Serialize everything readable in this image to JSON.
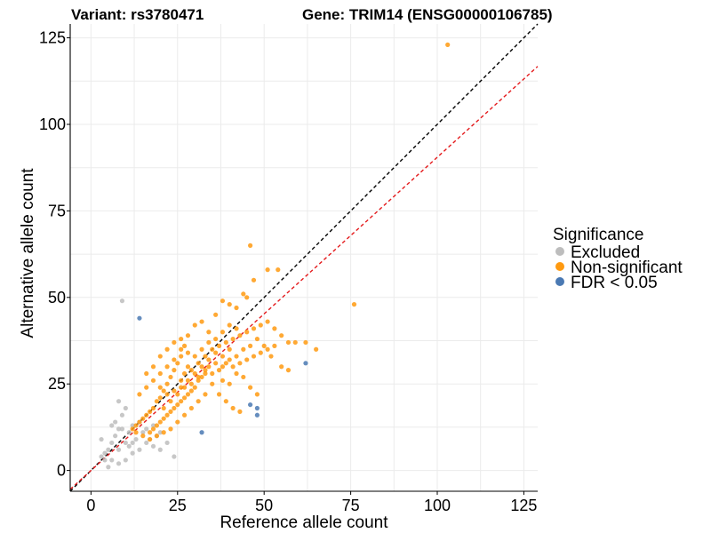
{
  "header": {
    "variant": "Variant: rs3780471",
    "gene": "Gene: TRIM14 (ENSG00000106785)"
  },
  "legend": {
    "title": "Significance",
    "items": [
      {
        "label": "Excluded",
        "color": "#bdbdbd"
      },
      {
        "label": "Non-significant",
        "color": "#ff9a10"
      },
      {
        "label": "FDR < 0.05",
        "color": "#4a79b3"
      }
    ]
  },
  "chart_data": {
    "type": "scatter",
    "title": "Variant: rs3780471    Gene: TRIM14 (ENSG00000106785)",
    "xlabel": "Reference allele count",
    "ylabel": "Alternative allele count",
    "xlim": [
      -6,
      129
    ],
    "ylim": [
      -6,
      129
    ],
    "xticks": [
      0,
      25,
      50,
      75,
      100,
      125
    ],
    "yticks": [
      0,
      25,
      50,
      75,
      100,
      125
    ],
    "tick_labels": [
      "0",
      "25",
      "50",
      "75",
      "100",
      "125"
    ],
    "grid": true,
    "legend_position": "right",
    "reference_lines": [
      {
        "name": "identity (y = x)",
        "slope": 1.0,
        "intercept": 0,
        "color": "#000000",
        "style": "dashed"
      },
      {
        "name": "fitted ratio",
        "slope": 0.905,
        "intercept": 0,
        "color": "#e41a1c",
        "style": "dashed"
      }
    ],
    "series": [
      {
        "name": "Excluded",
        "color": "#bdbdbd",
        "points": [
          [
            9,
            49
          ],
          [
            9,
            16
          ],
          [
            8,
            12
          ],
          [
            7,
            10
          ],
          [
            6,
            8
          ],
          [
            5,
            6
          ],
          [
            4,
            5
          ],
          [
            3,
            4
          ],
          [
            6,
            3
          ],
          [
            5,
            1
          ],
          [
            8,
            2
          ],
          [
            10,
            3
          ],
          [
            12,
            5
          ],
          [
            14,
            6
          ],
          [
            16,
            8
          ],
          [
            18,
            7
          ],
          [
            20,
            6
          ],
          [
            11,
            7
          ],
          [
            13,
            9
          ],
          [
            15,
            11
          ],
          [
            17,
            9
          ],
          [
            19,
            10
          ],
          [
            7,
            14
          ],
          [
            9,
            12
          ],
          [
            11,
            11
          ],
          [
            10,
            8
          ],
          [
            12,
            13
          ],
          [
            14,
            14
          ],
          [
            16,
            12
          ],
          [
            18,
            13
          ],
          [
            4,
            3
          ],
          [
            8,
            6
          ],
          [
            12,
            8
          ],
          [
            24,
            4
          ],
          [
            22,
            8
          ],
          [
            20,
            11
          ],
          [
            10,
            18
          ],
          [
            8,
            20
          ],
          [
            6,
            13
          ],
          [
            3,
            9
          ]
        ]
      },
      {
        "name": "Non-significant",
        "color": "#ff9a10",
        "points": [
          [
            103,
            123
          ],
          [
            76,
            48
          ],
          [
            65,
            35
          ],
          [
            62,
            37
          ],
          [
            59,
            37
          ],
          [
            46,
            65
          ],
          [
            47,
            55
          ],
          [
            51,
            58
          ],
          [
            54,
            58
          ],
          [
            44,
            51
          ],
          [
            45,
            50
          ],
          [
            42,
            47
          ],
          [
            40,
            48
          ],
          [
            38,
            49
          ],
          [
            36,
            45
          ],
          [
            34,
            40
          ],
          [
            32,
            43
          ],
          [
            30,
            42
          ],
          [
            28,
            39
          ],
          [
            27,
            36
          ],
          [
            26,
            33
          ],
          [
            25,
            31
          ],
          [
            24,
            29
          ],
          [
            23,
            27
          ],
          [
            22,
            25
          ],
          [
            21,
            23
          ],
          [
            20,
            21
          ],
          [
            19,
            20
          ],
          [
            18,
            18
          ],
          [
            17,
            17
          ],
          [
            16,
            16
          ],
          [
            15,
            15
          ],
          [
            14,
            14
          ],
          [
            13,
            13
          ],
          [
            12,
            12
          ],
          [
            36,
            34
          ],
          [
            34,
            30
          ],
          [
            33,
            28
          ],
          [
            32,
            27
          ],
          [
            31,
            26
          ],
          [
            30,
            24
          ],
          [
            29,
            23
          ],
          [
            28,
            22
          ],
          [
            27,
            21
          ],
          [
            26,
            20
          ],
          [
            25,
            19
          ],
          [
            24,
            18
          ],
          [
            23,
            17
          ],
          [
            22,
            16
          ],
          [
            21,
            15
          ],
          [
            20,
            14
          ],
          [
            19,
            13
          ],
          [
            18,
            12
          ],
          [
            17,
            11
          ],
          [
            38,
            30
          ],
          [
            40,
            32
          ],
          [
            42,
            33
          ],
          [
            44,
            35
          ],
          [
            46,
            36
          ],
          [
            48,
            38
          ],
          [
            50,
            36
          ],
          [
            52,
            33
          ],
          [
            55,
            30
          ],
          [
            57,
            29
          ],
          [
            38,
            26
          ],
          [
            40,
            25
          ],
          [
            42,
            28
          ],
          [
            44,
            27
          ],
          [
            46,
            24
          ],
          [
            48,
            22
          ],
          [
            20,
            28
          ],
          [
            22,
            30
          ],
          [
            24,
            32
          ],
          [
            26,
            35
          ],
          [
            28,
            34
          ],
          [
            18,
            26
          ],
          [
            16,
            24
          ],
          [
            14,
            22
          ],
          [
            16,
            28
          ],
          [
            18,
            30
          ],
          [
            20,
            33
          ],
          [
            22,
            35
          ],
          [
            24,
            37
          ],
          [
            26,
            38
          ],
          [
            28,
            30
          ],
          [
            30,
            33
          ],
          [
            32,
            35
          ],
          [
            34,
            37
          ],
          [
            36,
            38
          ],
          [
            38,
            40
          ],
          [
            40,
            42
          ],
          [
            42,
            41
          ],
          [
            35,
            25
          ],
          [
            37,
            22
          ],
          [
            39,
            20
          ],
          [
            41,
            18
          ],
          [
            43,
            17
          ],
          [
            33,
            22
          ],
          [
            31,
            20
          ],
          [
            29,
            18
          ],
          [
            27,
            16
          ],
          [
            25,
            14
          ],
          [
            23,
            12
          ],
          [
            21,
            11
          ],
          [
            19,
            10
          ],
          [
            17,
            9
          ],
          [
            15,
            10
          ],
          [
            13,
            11
          ],
          [
            26,
            26
          ],
          [
            27,
            28
          ],
          [
            29,
            29
          ],
          [
            31,
            31
          ],
          [
            33,
            33
          ],
          [
            35,
            35
          ],
          [
            37,
            36
          ],
          [
            39,
            37
          ],
          [
            41,
            38
          ],
          [
            43,
            39
          ],
          [
            45,
            40
          ],
          [
            47,
            41
          ],
          [
            49,
            42
          ],
          [
            51,
            43
          ],
          [
            53,
            41
          ],
          [
            55,
            39
          ],
          [
            57,
            37
          ],
          [
            20,
            24
          ],
          [
            22,
            22
          ],
          [
            24,
            23
          ],
          [
            26,
            24
          ],
          [
            28,
            26
          ],
          [
            30,
            28
          ],
          [
            32,
            30
          ],
          [
            34,
            32
          ],
          [
            36,
            31
          ],
          [
            38,
            33
          ],
          [
            40,
            35
          ],
          [
            21,
            18
          ],
          [
            23,
            20
          ],
          [
            25,
            22
          ],
          [
            27,
            24
          ],
          [
            29,
            25
          ],
          [
            31,
            27
          ],
          [
            33,
            29
          ],
          [
            35,
            28
          ],
          [
            37,
            29
          ],
          [
            39,
            31
          ],
          [
            41,
            30
          ],
          [
            43,
            31
          ],
          [
            45,
            32
          ],
          [
            47,
            33
          ],
          [
            49,
            34
          ],
          [
            51,
            35
          ],
          [
            53,
            36
          ]
        ]
      },
      {
        "name": "FDR < 0.05",
        "color": "#4a79b3",
        "points": [
          [
            14,
            44
          ],
          [
            62,
            31
          ],
          [
            46,
            19
          ],
          [
            48,
            18
          ],
          [
            48,
            16
          ],
          [
            32,
            11
          ]
        ]
      }
    ]
  }
}
